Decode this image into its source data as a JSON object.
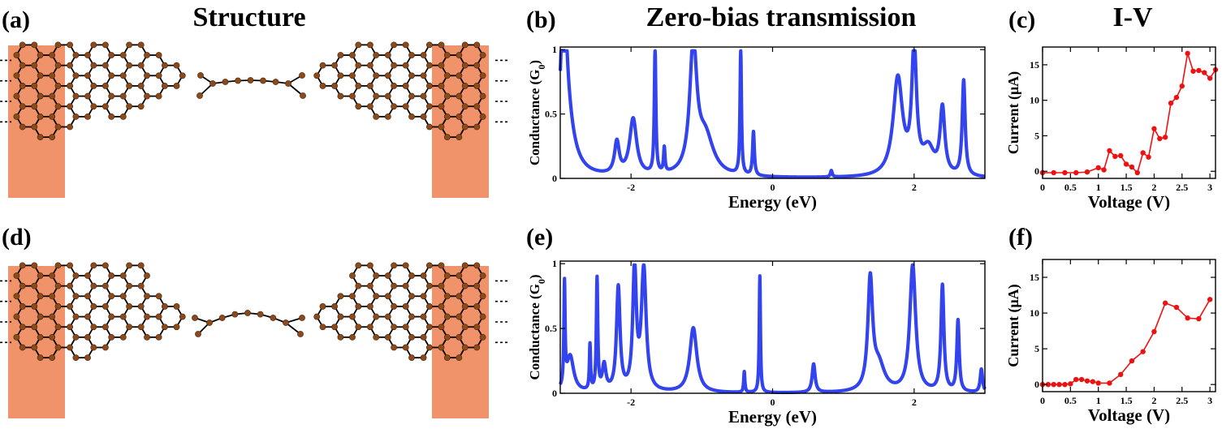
{
  "colors": {
    "lead": "#f08a5d",
    "atom": "#8a4a1c",
    "bond": "#000000",
    "transmission": "#3344ee",
    "iv": "#ee1111"
  },
  "titles": {
    "structure": "Structure",
    "transmission": "Zero-bias transmission",
    "iv": "I-V"
  },
  "panel_labels": {
    "a": "(a)",
    "b": "(b)",
    "c": "(c)",
    "d": "(d)",
    "e": "(e)",
    "f": "(f)"
  },
  "chart_data": [
    {
      "id": "b",
      "type": "line",
      "xlabel": "Energy (eV)",
      "ylabel": "Conductance (G",
      "ylabel_sub": "0",
      "ylabel_tail": ")",
      "xlim": [
        -3,
        3
      ],
      "ylim": [
        0,
        1.02
      ],
      "xticks": [
        -2,
        0,
        2
      ],
      "xtick_labels": [
        "-2",
        "0",
        "2"
      ],
      "yticks": [
        0,
        0.5,
        1
      ],
      "ytick_labels": [
        "0",
        "0.5",
        "1"
      ],
      "peaks": [
        {
          "e0": -2.95,
          "h": 0.98,
          "w": 0.04
        },
        {
          "e0": -2.93,
          "h": 0.6,
          "w": 0.12
        },
        {
          "e0": -2.2,
          "h": 0.25,
          "w": 0.04
        },
        {
          "e0": -1.97,
          "h": 0.44,
          "w": 0.06
        },
        {
          "e0": -1.66,
          "h": 0.97,
          "w": 0.013
        },
        {
          "e0": -1.53,
          "h": 0.19,
          "w": 0.012
        },
        {
          "e0": -1.12,
          "h": 0.98,
          "w": 0.06
        },
        {
          "e0": -0.95,
          "h": 0.3,
          "w": 0.14
        },
        {
          "e0": -0.45,
          "h": 0.97,
          "w": 0.012
        },
        {
          "e0": -0.27,
          "h": 0.34,
          "w": 0.015
        },
        {
          "e0": 0.83,
          "h": 0.05,
          "w": 0.015
        },
        {
          "e0": 1.77,
          "h": 0.76,
          "w": 0.08
        },
        {
          "e0": 2.0,
          "h": 0.97,
          "w": 0.04
        },
        {
          "e0": 2.2,
          "h": 0.2,
          "w": 0.1
        },
        {
          "e0": 2.4,
          "h": 0.51,
          "w": 0.04
        },
        {
          "e0": 2.7,
          "h": 0.74,
          "w": 0.025
        }
      ]
    },
    {
      "id": "c",
      "type": "line",
      "xlabel": "Voltage (V)",
      "ylabel": "Current (μA)",
      "xlim": [
        0,
        3.1
      ],
      "ylim": [
        -1,
        17.5
      ],
      "xticks": [
        0,
        0.5,
        1,
        1.5,
        2,
        2.5,
        3
      ],
      "xtick_labels": [
        "0",
        "0.5",
        "1",
        "1.5",
        "2",
        "2.5",
        "3"
      ],
      "yticks": [
        0,
        5,
        10,
        15
      ],
      "ytick_labels": [
        "0",
        "5",
        "10",
        "15"
      ],
      "x": [
        0,
        0.2,
        0.4,
        0.6,
        0.8,
        1.0,
        1.1,
        1.2,
        1.3,
        1.4,
        1.5,
        1.6,
        1.7,
        1.8,
        1.9,
        2.0,
        2.1,
        2.2,
        2.3,
        2.4,
        2.5,
        2.6,
        2.7,
        2.8,
        2.9,
        3.0,
        3.1
      ],
      "y": [
        -0.2,
        -0.2,
        -0.2,
        -0.2,
        -0.1,
        0.5,
        0.2,
        2.9,
        2.1,
        2.2,
        1.0,
        0.6,
        -0.2,
        2.6,
        2.0,
        6.0,
        4.6,
        4.8,
        9.6,
        10.4,
        12.0,
        16.6,
        14.1,
        14.2,
        13.9,
        13.1,
        14.3
      ]
    },
    {
      "id": "e",
      "type": "line",
      "xlabel": "Energy (eV)",
      "ylabel": "Conductance (G",
      "ylabel_sub": "0",
      "ylabel_tail": ")",
      "xlim": [
        -3,
        3
      ],
      "ylim": [
        0,
        1.02
      ],
      "xticks": [
        -2,
        0,
        2
      ],
      "xtick_labels": [
        "-2",
        "0",
        "2"
      ],
      "yticks": [
        0,
        0.5,
        1
      ],
      "ytick_labels": [
        "0",
        "0.5",
        "1"
      ],
      "peaks": [
        {
          "e0": -2.94,
          "h": 0.78,
          "w": 0.01
        },
        {
          "e0": -2.86,
          "h": 0.28,
          "w": 0.06
        },
        {
          "e0": -2.58,
          "h": 0.35,
          "w": 0.01
        },
        {
          "e0": -2.48,
          "h": 0.86,
          "w": 0.012
        },
        {
          "e0": -2.38,
          "h": 0.2,
          "w": 0.03
        },
        {
          "e0": -2.18,
          "h": 0.8,
          "w": 0.03
        },
        {
          "e0": -1.95,
          "h": 0.94,
          "w": 0.03
        },
        {
          "e0": -1.82,
          "h": 0.94,
          "w": 0.04
        },
        {
          "e0": -1.12,
          "h": 0.5,
          "w": 0.06
        },
        {
          "e0": -0.4,
          "h": 0.16,
          "w": 0.01
        },
        {
          "e0": -0.18,
          "h": 0.9,
          "w": 0.01
        },
        {
          "e0": 0.58,
          "h": 0.22,
          "w": 0.025
        },
        {
          "e0": 1.38,
          "h": 0.84,
          "w": 0.04
        },
        {
          "e0": 1.5,
          "h": 0.2,
          "w": 0.1
        },
        {
          "e0": 1.98,
          "h": 0.98,
          "w": 0.05
        },
        {
          "e0": 2.4,
          "h": 0.82,
          "w": 0.025
        },
        {
          "e0": 2.62,
          "h": 0.55,
          "w": 0.02
        },
        {
          "e0": 2.95,
          "h": 0.18,
          "w": 0.02
        }
      ]
    },
    {
      "id": "f",
      "type": "line",
      "xlabel": "Voltage (V)",
      "ylabel": "Current (μA)",
      "xlim": [
        0,
        3.1
      ],
      "ylim": [
        -1,
        17.5
      ],
      "xticks": [
        0,
        0.5,
        1,
        1.5,
        2,
        2.5,
        3
      ],
      "xtick_labels": [
        "0",
        "0.5",
        "1",
        "1.5",
        "2",
        "2.5",
        "3"
      ],
      "yticks": [
        0,
        5,
        10,
        15
      ],
      "ytick_labels": [
        "0",
        "5",
        "10",
        "15"
      ],
      "x": [
        0,
        0.1,
        0.2,
        0.3,
        0.4,
        0.5,
        0.6,
        0.7,
        0.8,
        0.9,
        1.0,
        1.2,
        1.4,
        1.6,
        1.8,
        2.0,
        2.2,
        2.4,
        2.6,
        2.8,
        3.0
      ],
      "y": [
        0,
        0,
        0,
        0,
        0,
        0.1,
        0.7,
        0.7,
        0.5,
        0.4,
        0.2,
        0.2,
        1.4,
        3.3,
        4.6,
        7.4,
        11.4,
        10.8,
        9.3,
        9.2,
        11.9
      ]
    }
  ]
}
